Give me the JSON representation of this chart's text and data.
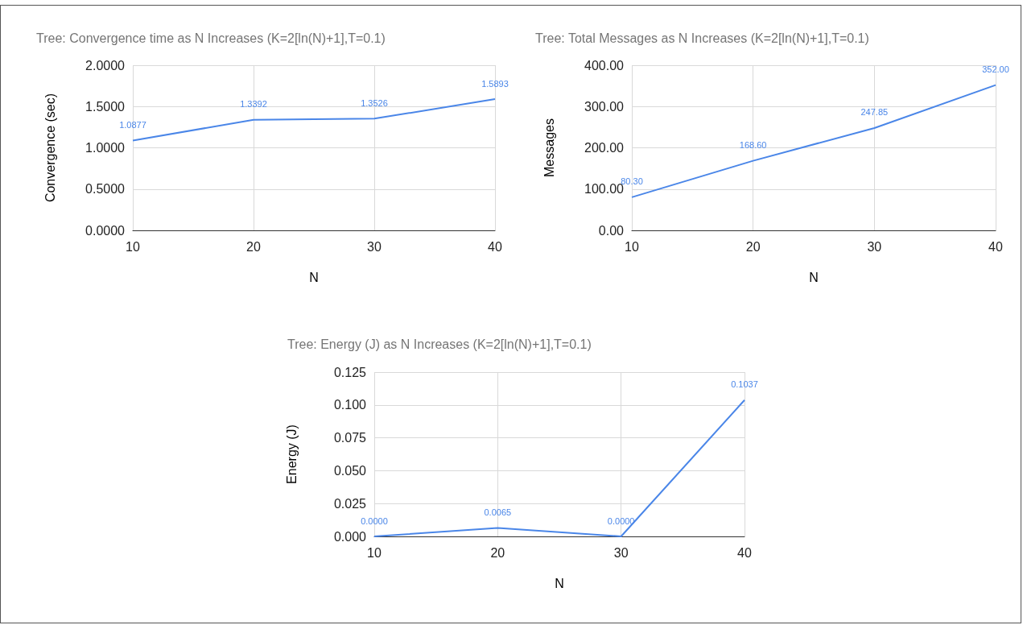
{
  "chart_data": [
    {
      "type": "line",
      "title": "Tree: Convergence time as N Increases (K=2[ln(N)+1],T=0.1)",
      "xlabel": "N",
      "ylabel": "Convergence (sec)",
      "x": [
        10,
        20,
        30,
        40
      ],
      "series": [
        {
          "color": "#4a86e8",
          "values": [
            1.0877,
            1.3392,
            1.3526,
            1.5893
          ],
          "value_labels": [
            "1.0877",
            "1.3392",
            "1.3526",
            "1.5893"
          ]
        }
      ],
      "xlim": [
        10,
        40
      ],
      "xticks": [
        10,
        20,
        30,
        40
      ],
      "ylim": [
        0,
        2
      ],
      "yticks": [
        {
          "value": 0,
          "label": "0.0000"
        },
        {
          "value": 0.5,
          "label": "0.5000"
        },
        {
          "value": 1,
          "label": "1.0000"
        },
        {
          "value": 1.5,
          "label": "1.5000"
        },
        {
          "value": 2,
          "label": "2.0000"
        }
      ],
      "grid": true,
      "marker": "none",
      "line_style": "solid"
    },
    {
      "type": "line",
      "title": "Tree: Total Messages as N Increases (K=2[ln(N)+1],T=0.1)",
      "xlabel": "N",
      "ylabel": "Messages",
      "x": [
        10,
        20,
        30,
        40
      ],
      "series": [
        {
          "color": "#4a86e8",
          "values": [
            80.3,
            168.6,
            247.85,
            352.0
          ],
          "value_labels": [
            "80.30",
            "168.60",
            "247.85",
            "352.00"
          ]
        }
      ],
      "xlim": [
        10,
        40
      ],
      "xticks": [
        10,
        20,
        30,
        40
      ],
      "ylim": [
        0,
        400
      ],
      "yticks": [
        {
          "value": 0,
          "label": "0.00"
        },
        {
          "value": 100,
          "label": "100.00"
        },
        {
          "value": 200,
          "label": "200.00"
        },
        {
          "value": 300,
          "label": "300.00"
        },
        {
          "value": 400,
          "label": "400.00"
        }
      ],
      "grid": true,
      "marker": "none",
      "line_style": "solid"
    },
    {
      "type": "line",
      "title": "Tree: Energy (J) as N Increases (K=2[ln(N)+1],T=0.1)",
      "xlabel": "N",
      "ylabel": "Energy (J)",
      "x": [
        10,
        20,
        30,
        40
      ],
      "series": [
        {
          "color": "#4a86e8",
          "values": [
            0.0,
            0.0065,
            0.0,
            0.1037
          ],
          "value_labels": [
            "0.0000",
            "0.0065",
            "0.0000",
            "0.1037"
          ]
        }
      ],
      "xlim": [
        10,
        40
      ],
      "xticks": [
        10,
        20,
        30,
        40
      ],
      "ylim": [
        0,
        0.125
      ],
      "yticks": [
        {
          "value": 0,
          "label": "0.000"
        },
        {
          "value": 0.025,
          "label": "0.025"
        },
        {
          "value": 0.05,
          "label": "0.050"
        },
        {
          "value": 0.075,
          "label": "0.075"
        },
        {
          "value": 0.1,
          "label": "0.100"
        },
        {
          "value": 0.125,
          "label": "0.125"
        }
      ],
      "grid": true,
      "marker": "none",
      "line_style": "solid"
    }
  ]
}
